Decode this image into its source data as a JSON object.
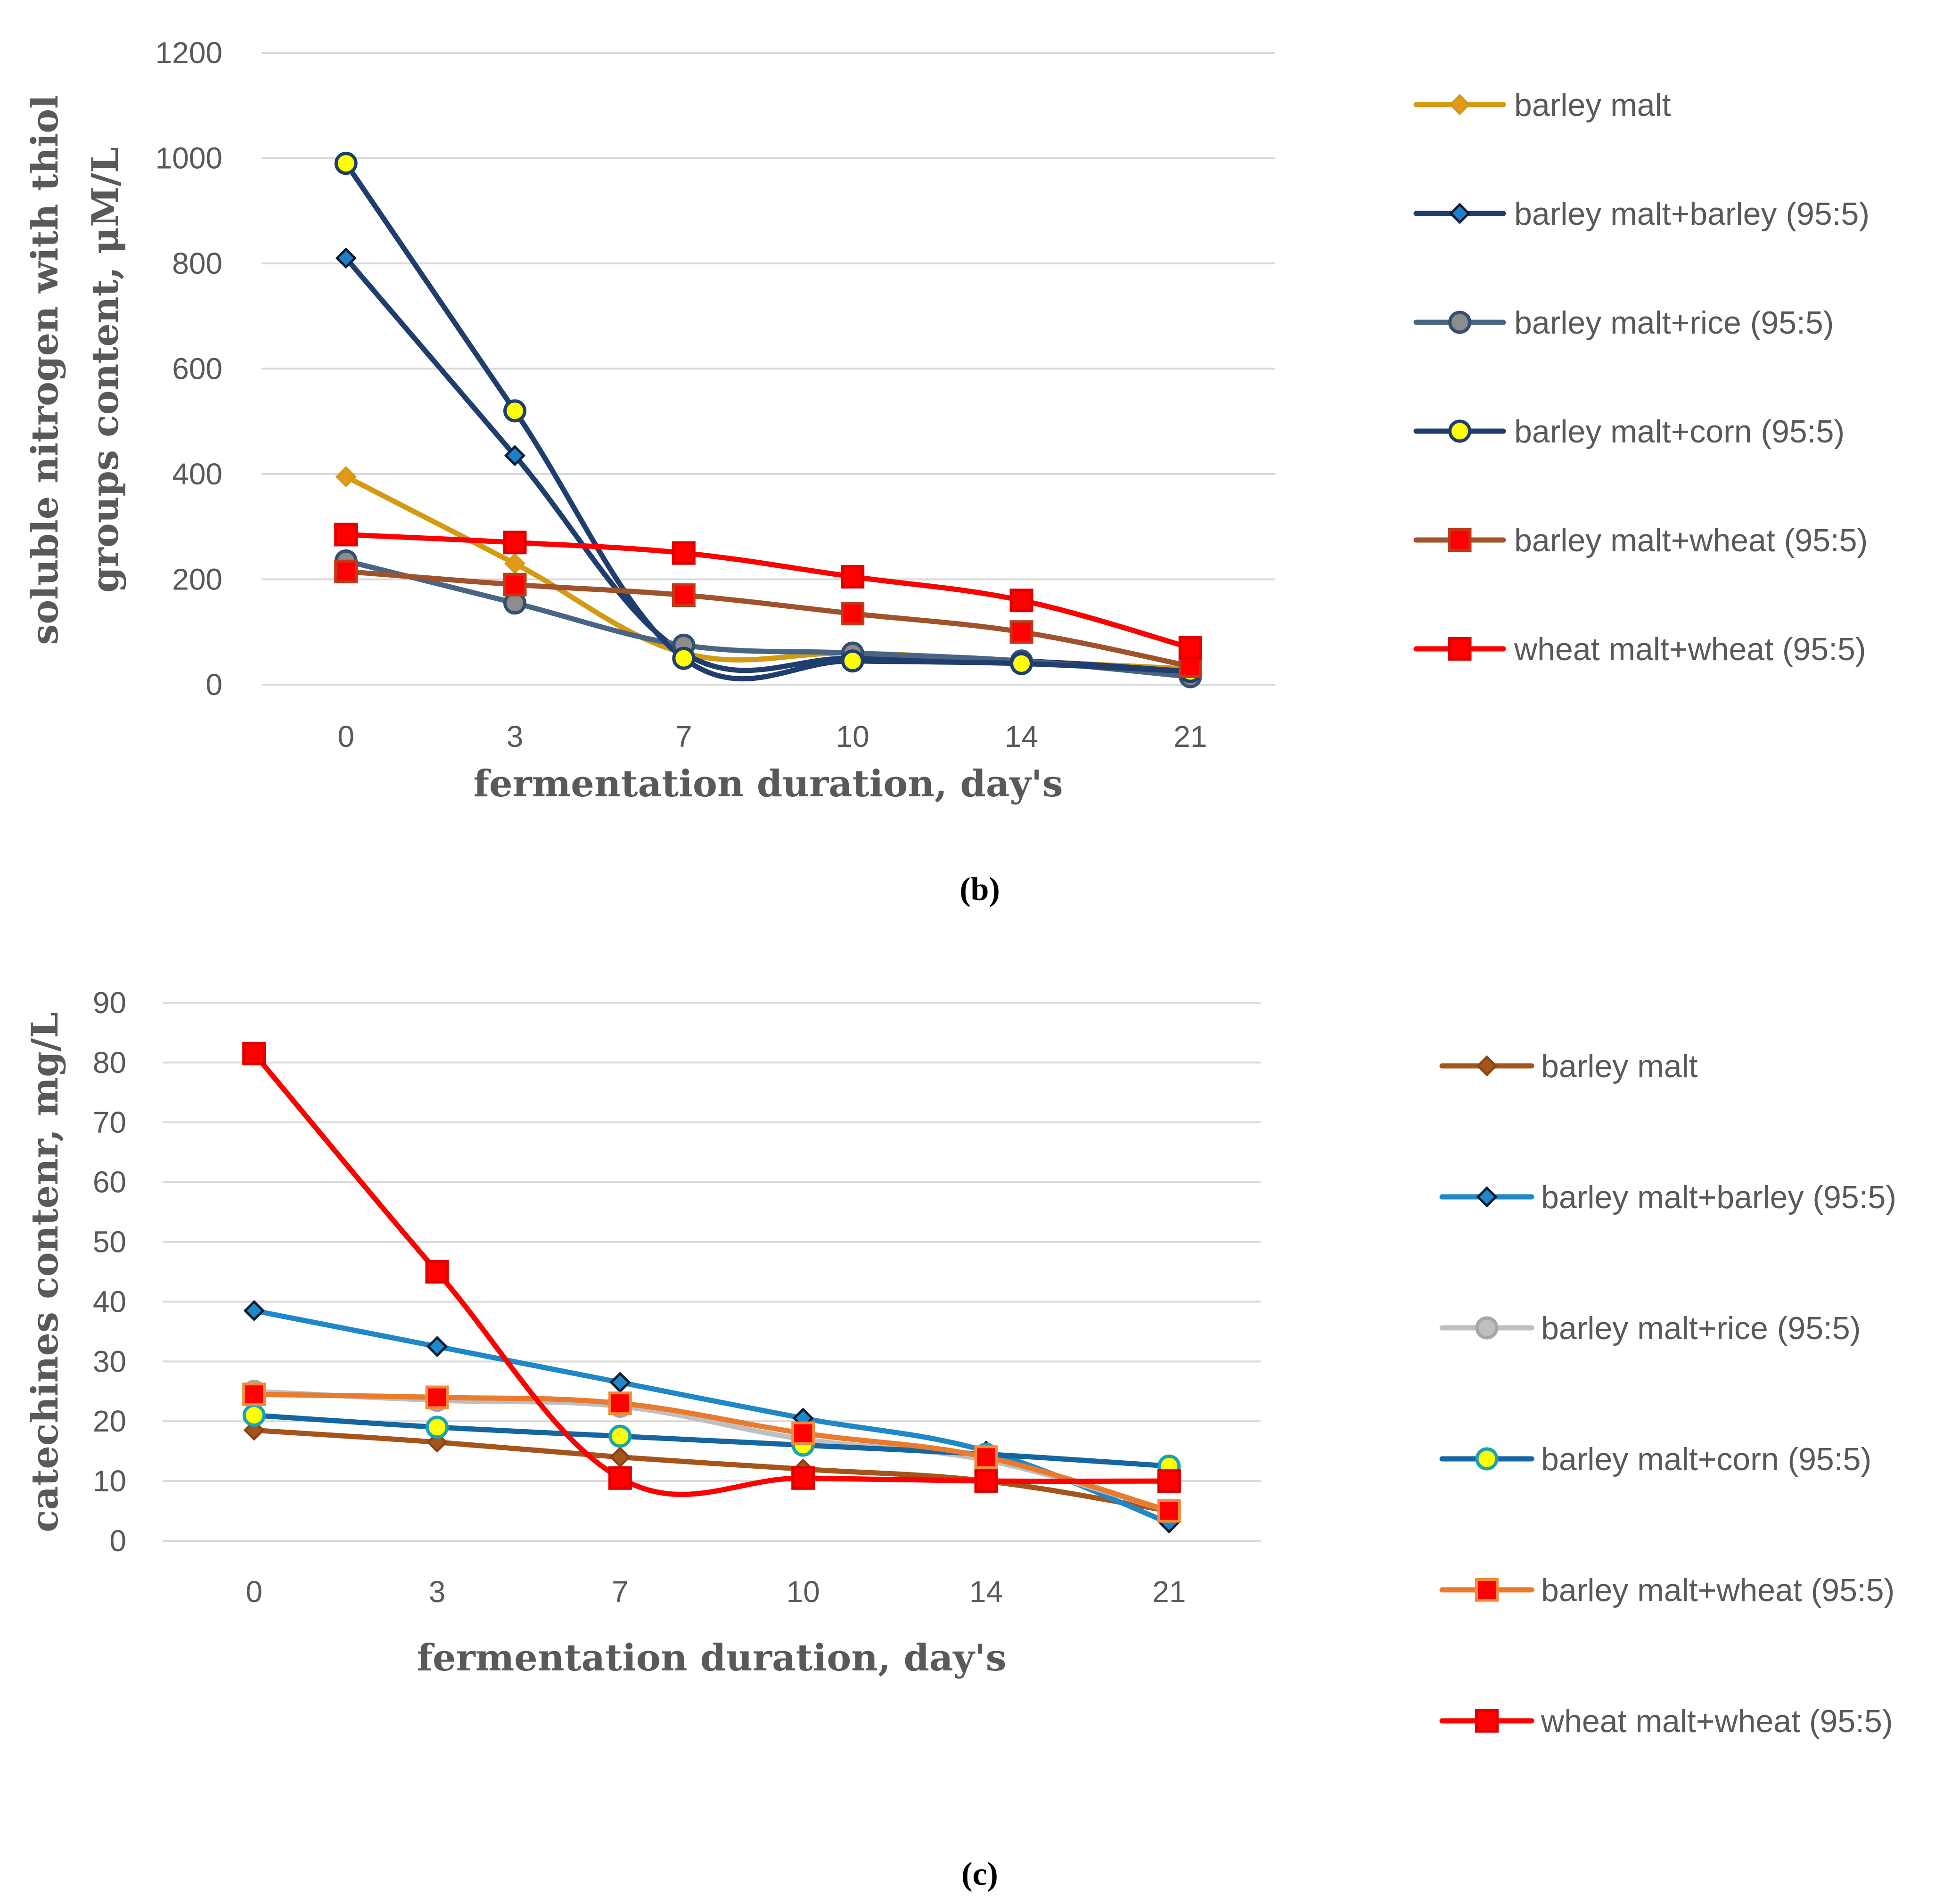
{
  "chart_data": [
    {
      "type": "line",
      "caption": "(b)",
      "xlabel": "fermentation duration, day's",
      "ylabel": "soluble nitrogen with thiol groups content, μM/L",
      "ylabel_lines": [
        "soluble nitrogen with thiol",
        "groups content, μM/L"
      ],
      "categories": [
        "0",
        "3",
        "7",
        "10",
        "14",
        "21"
      ],
      "ylim": [
        0,
        1200
      ],
      "yticks": [
        0,
        200,
        400,
        600,
        800,
        1000,
        1200
      ],
      "grid": true,
      "legend_position": "right",
      "series": [
        {
          "name": "barley malt",
          "values": [
            395,
            230,
            60,
            60,
            45,
            30
          ],
          "color": "#D39B14",
          "marker": "diamond",
          "marker_fill": "#E29A1B",
          "marker_stroke": "#D39B14"
        },
        {
          "name": "barley malt+barley (95:5)",
          "values": [
            810,
            435,
            60,
            50,
            45,
            25
          ],
          "color": "#1F3E6E",
          "marker": "diamond",
          "marker_fill": "#1E7FC9",
          "marker_stroke": "#0B1A33"
        },
        {
          "name": "barley malt+rice (95:5)",
          "values": [
            235,
            155,
            75,
            60,
            45,
            15
          ],
          "color": "#4A6484",
          "marker": "circle",
          "marker_fill": "#8C8C8C",
          "marker_stroke": "#35506E"
        },
        {
          "name": "barley malt+corn (95:5)",
          "values": [
            990,
            520,
            50,
            45,
            40,
            25
          ],
          "color": "#1F3E6E",
          "marker": "circle",
          "marker_fill": "#FFFF00",
          "marker_stroke": "#1F3E6E"
        },
        {
          "name": "barley malt+wheat (95:5)",
          "values": [
            215,
            190,
            170,
            135,
            100,
            35
          ],
          "color": "#A0522D",
          "marker": "square",
          "marker_fill": "#FF0000",
          "marker_stroke": "#C0391B"
        },
        {
          "name": "wheat malt+wheat (95:5)",
          "values": [
            285,
            270,
            250,
            205,
            160,
            70
          ],
          "color": "#FF0000",
          "marker": "square",
          "marker_fill": "#FF0000",
          "marker_stroke": "#E00000"
        }
      ]
    },
    {
      "type": "line",
      "caption": "(c)",
      "xlabel": "fermentation duration, day's",
      "ylabel": "catechines contenr, mg/L",
      "ylabel_lines": [
        "catechines contenr, mg/L"
      ],
      "categories": [
        "0",
        "3",
        "7",
        "10",
        "14",
        "21"
      ],
      "ylim": [
        0,
        90
      ],
      "yticks": [
        0,
        10,
        20,
        30,
        40,
        50,
        60,
        70,
        80,
        90
      ],
      "grid": true,
      "legend_position": "right",
      "series": [
        {
          "name": "barley malt",
          "values": [
            18.5,
            16.5,
            14,
            12,
            10,
            5
          ],
          "color": "#A5541C",
          "marker": "diamond",
          "marker_fill": "#A5541C",
          "marker_stroke": "#8A4514"
        },
        {
          "name": "barley malt+barley (95:5)",
          "values": [
            38.5,
            32.5,
            26.5,
            20.5,
            15,
            3
          ],
          "color": "#1E88C8",
          "marker": "diamond",
          "marker_fill": "#1E88C8",
          "marker_stroke": "#0B1A33"
        },
        {
          "name": "barley malt+rice (95:5)",
          "values": [
            25,
            23.5,
            22.5,
            17,
            13.5,
            5
          ],
          "color": "#BFBFBF",
          "marker": "circle",
          "marker_fill": "#BFBFBF",
          "marker_stroke": "#A6A6A6"
        },
        {
          "name": "barley malt+corn (95:5)",
          "values": [
            21,
            19,
            17.5,
            16,
            14.5,
            12.5
          ],
          "color": "#1565A0",
          "marker": "circle",
          "marker_fill": "#FFFF00",
          "marker_stroke": "#19A3B5"
        },
        {
          "name": "barley malt+wheat (95:5)",
          "values": [
            24.5,
            24,
            23,
            18,
            14,
            5
          ],
          "color": "#E97A2E",
          "marker": "square",
          "marker_fill": "#FF0000",
          "marker_stroke": "#F28A3C"
        },
        {
          "name": "wheat malt+wheat (95:5)",
          "values": [
            81.5,
            45,
            10.5,
            10.5,
            10,
            10
          ],
          "color": "#FF0000",
          "marker": "square",
          "marker_fill": "#FF0000",
          "marker_stroke": "#E00000"
        }
      ]
    }
  ]
}
